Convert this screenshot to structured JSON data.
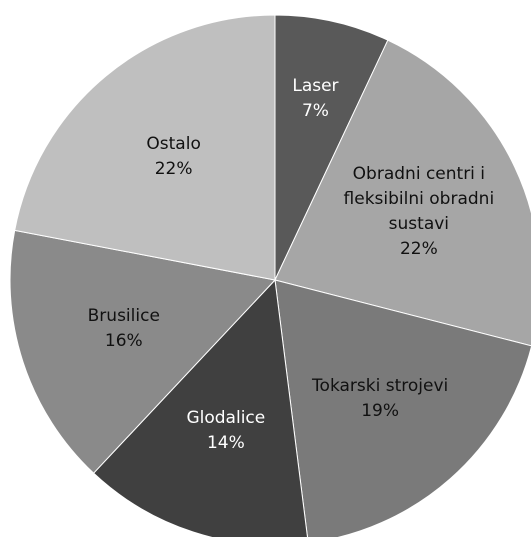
{
  "chart_data": {
    "type": "pie",
    "categories": [
      "Laser",
      "Obradni centri i fleksibilni obradni sustavi",
      "Tokarski strojevi",
      "Glodalice",
      "Brusilice",
      "Ostalo"
    ],
    "values": [
      7,
      22,
      19,
      14,
      16,
      22
    ],
    "value_labels": [
      "7%",
      "22%",
      "19%",
      "14%",
      "16%",
      "22%"
    ],
    "colors": [
      "#595959",
      "#a6a6a6",
      "#7a7a7a",
      "#404040",
      "#8a8a8a",
      "#bfbfbf"
    ]
  }
}
